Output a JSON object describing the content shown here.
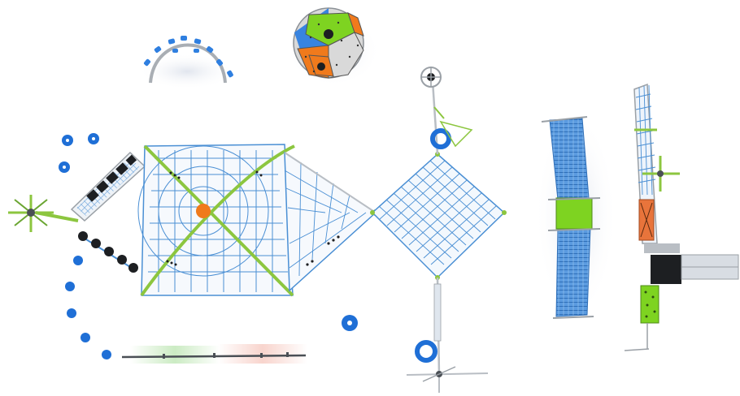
{
  "colors": {
    "background": "#ffffff",
    "rope_blue": "#4a8fd4",
    "rope_blue_dark": "#2f6fb8",
    "frame_green": "#8cc63f",
    "hub_orange": "#f07a1c",
    "panel_green": "#7ed321",
    "panel_orange": "#e8743b",
    "pole_gray": "#b9bec4",
    "steel_dark": "#4a4f55",
    "black": "#1d1f22",
    "blue_disc": "#1f6fd6"
  },
  "components": [
    {
      "id": "arch-handrail",
      "icon": "arch-with-blue-grips"
    },
    {
      "id": "climbing-dome",
      "icon": "polyhedron-ball",
      "panel_colors": [
        "#2f7fe0",
        "#7ed321",
        "#f07a1c",
        "#d9d9d9"
      ]
    },
    {
      "id": "spinner-left",
      "icon": "green-spinner"
    },
    {
      "id": "blue-step-discs",
      "icon": "blue-discs"
    },
    {
      "id": "tire-bridge",
      "icon": "tire-tunnel"
    },
    {
      "id": "black-ball-chain",
      "icon": "black-balls"
    },
    {
      "id": "pyramid-net",
      "icon": "rope-net-with-orange-hub"
    },
    {
      "id": "triangle-net",
      "icon": "triangular-net"
    },
    {
      "id": "diamond-net",
      "icon": "square-rope-net"
    },
    {
      "id": "tower-top",
      "icon": "pole-with-ring"
    },
    {
      "id": "tower-bottom",
      "icon": "pole-with-ring"
    },
    {
      "id": "balance-beam",
      "icon": "balance-rail"
    },
    {
      "id": "tube-tunnel",
      "icon": "rope-tube-with-green-band"
    },
    {
      "id": "slide-tower",
      "icon": "tower-with-net-and-slide"
    }
  ]
}
